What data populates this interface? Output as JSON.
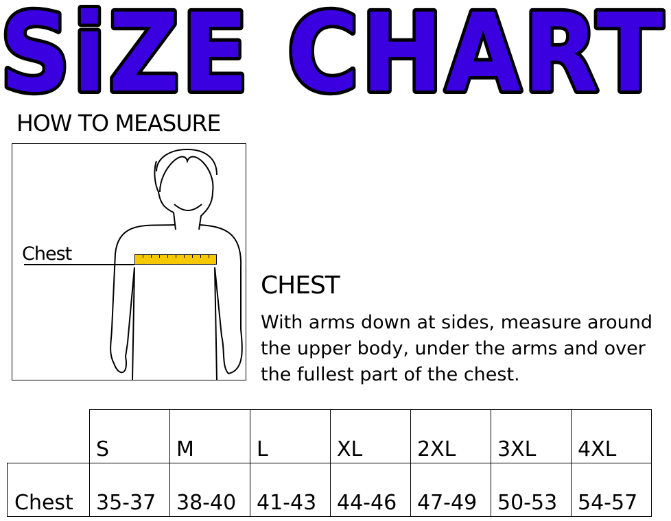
{
  "title": "SiZE CHART",
  "title_color": "#3a00e0",
  "how_to_measure": "HOW TO MEASURE",
  "figure": {
    "chest_label": "Chest",
    "tape_color": "#f5c800"
  },
  "chest_heading": "CHEST",
  "chest_description": "With arms down at sides, measure around the upper body, under the arms and over the fullest part of the chest.",
  "table": {
    "sizes": [
      "S",
      "M",
      "L",
      "XL",
      "2XL",
      "3XL",
      "4XL"
    ],
    "rows": [
      {
        "label": "Chest",
        "values": [
          "35-37",
          "38-40",
          "41-43",
          "44-46",
          "47-49",
          "50-53",
          "54-57"
        ]
      }
    ]
  }
}
